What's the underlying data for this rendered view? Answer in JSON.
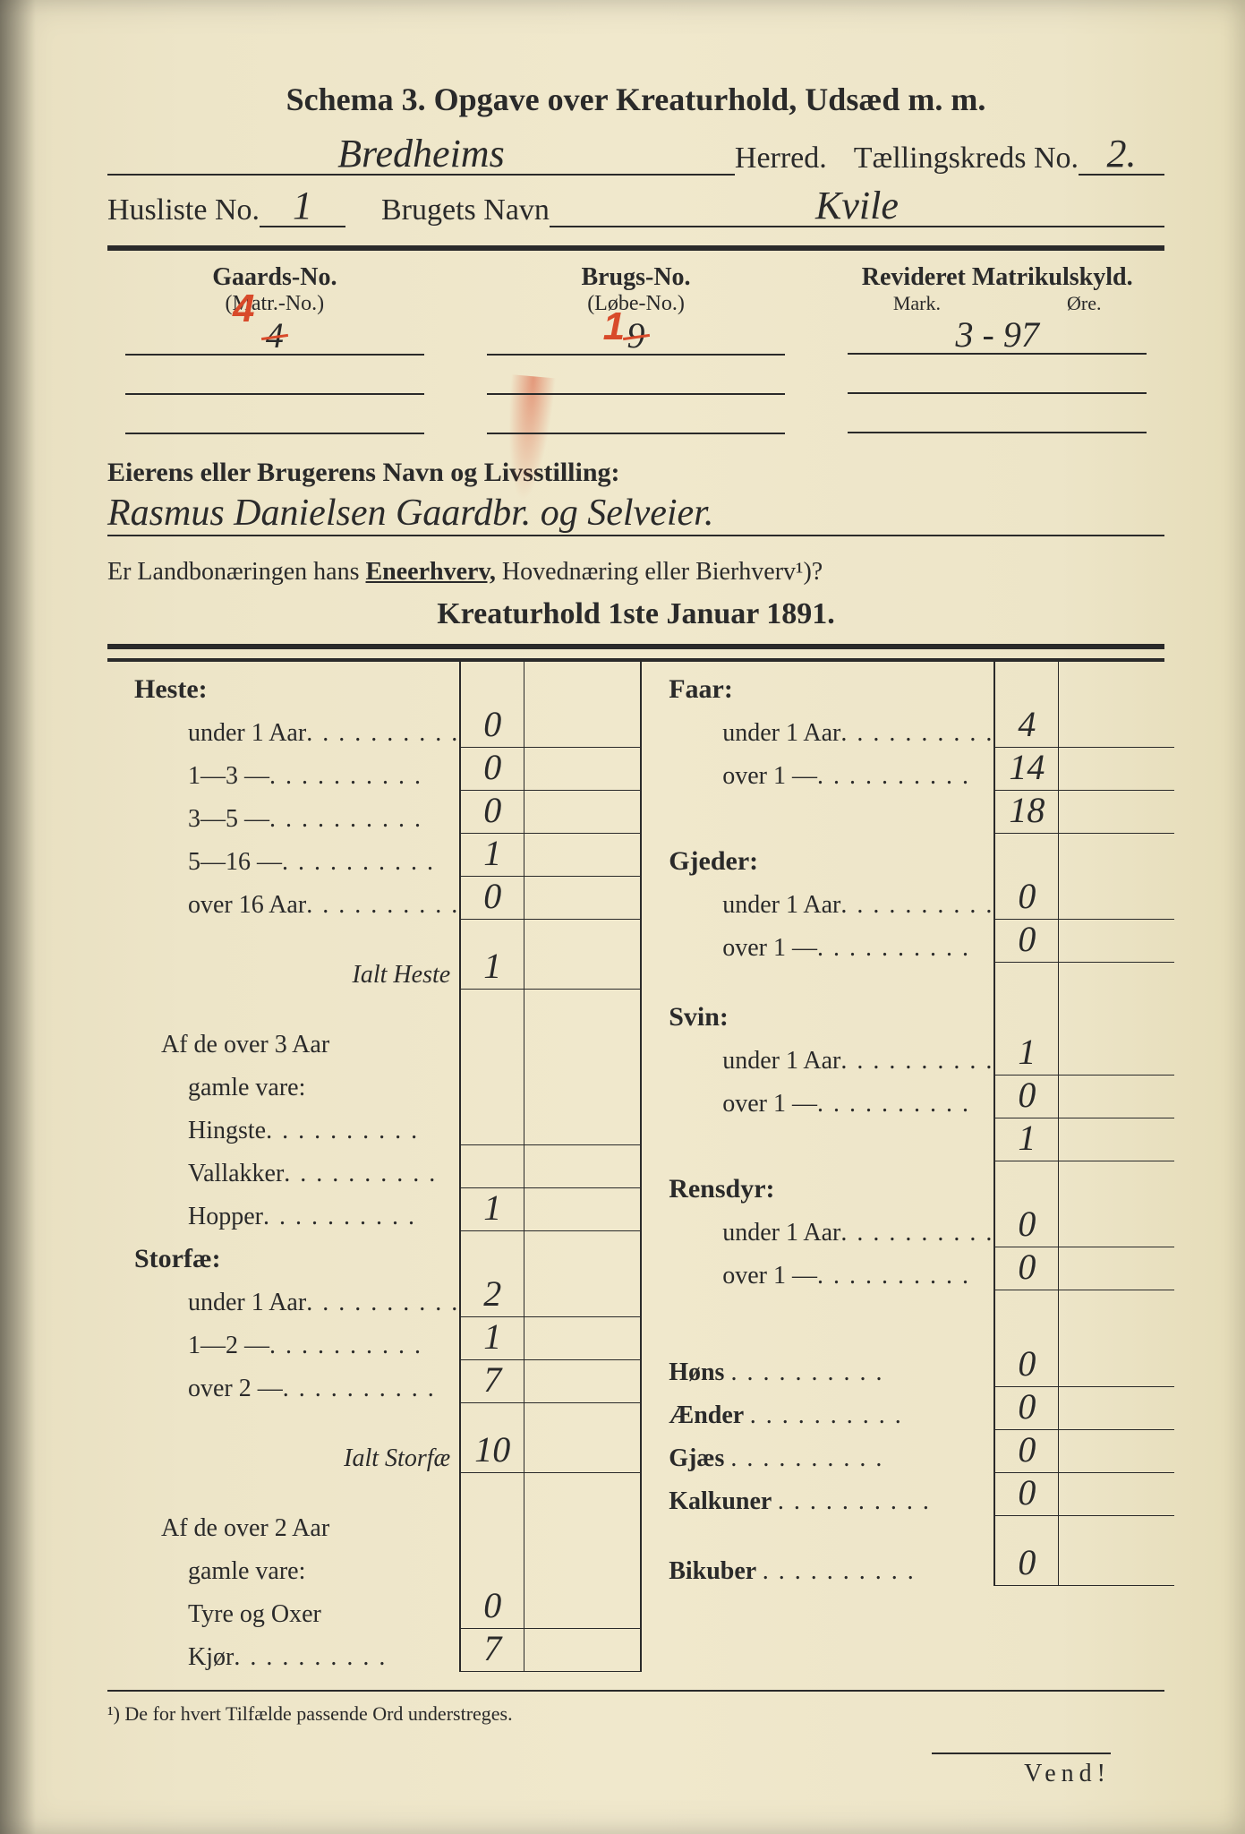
{
  "title": "Schema 3.   Opgave over Kreaturhold, Udsæd m. m.",
  "herred_fill": "Bredheims",
  "herred_label": "Herred.",
  "taellingskreds_label": "Tællingskreds No.",
  "taellingskreds_no": "2.",
  "husliste_label": "Husliste No.",
  "husliste_no": "1",
  "brugets_label": "Brugets Navn",
  "brugets_navn": "Kvile",
  "cols": {
    "gaards": {
      "hdr": "Gaards-No.",
      "sub": "(Matr.-No.)",
      "val_orig": "4",
      "val_red": "4"
    },
    "brugs": {
      "hdr": "Brugs-No.",
      "sub": "(Løbe-No.)",
      "val_orig": "9",
      "val_red": "1"
    },
    "revid": {
      "hdr": "Revideret Matrikulskyld.",
      "mark": "Mark.",
      "ore": "Øre.",
      "val": "3 - 97"
    }
  },
  "owner_label": "Eierens eller Brugerens Navn og Livsstilling:",
  "owner_fill": "Rasmus Danielsen Gaardbr. og Selveier.",
  "question_text_a": "Er Landbonæringen hans ",
  "question_under": "Eneerhverv,",
  "question_text_b": " Hovednæring eller Bierhverv¹)?",
  "kreatur_title": "Kreaturhold 1ste Januar 1891.",
  "left_rows": [
    {
      "type": "cat",
      "label": "Heste:"
    },
    {
      "type": "val",
      "label": "under 1 Aar",
      "dots": true,
      "v": "0"
    },
    {
      "type": "val",
      "label": "1—3    —",
      "dots": true,
      "v": "0"
    },
    {
      "type": "val",
      "label": "3—5    —",
      "dots": true,
      "v": "0"
    },
    {
      "type": "val",
      "label": "5—16  —",
      "dots": true,
      "v": "1"
    },
    {
      "type": "val",
      "label": "over 16 Aar",
      "dots": true,
      "v": "0"
    },
    {
      "type": "spacer"
    },
    {
      "type": "ital",
      "label": "Ialt Heste",
      "v": "1"
    },
    {
      "type": "spacer"
    },
    {
      "type": "sub",
      "label": "Af de over 3 Aar"
    },
    {
      "type": "sub2",
      "label": "gamle vare:"
    },
    {
      "type": "val",
      "label": "Hingste",
      "dots": true,
      "v": ""
    },
    {
      "type": "val",
      "label": "Vallakker",
      "dots": true,
      "v": ""
    },
    {
      "type": "val",
      "label": "Hopper",
      "dots": true,
      "v": "1"
    },
    {
      "type": "cat",
      "label": "Storfæ:"
    },
    {
      "type": "val",
      "label": "under 1 Aar",
      "dots": true,
      "v": "2"
    },
    {
      "type": "val",
      "label": "1—2    —",
      "dots": true,
      "v": "1"
    },
    {
      "type": "val",
      "label": "over 2  —",
      "dots": true,
      "v": "7"
    },
    {
      "type": "spacer"
    },
    {
      "type": "ital",
      "label": "Ialt Storfæ",
      "v": "10"
    },
    {
      "type": "spacer"
    },
    {
      "type": "sub",
      "label": "Af de over 2 Aar"
    },
    {
      "type": "sub2",
      "label": "gamle vare:"
    },
    {
      "type": "val",
      "label": "Tyre og Oxer",
      "v": "0"
    },
    {
      "type": "val",
      "label": "Kjør",
      "dots": true,
      "v": "7"
    }
  ],
  "right_rows": [
    {
      "type": "cat",
      "label": "Faar:"
    },
    {
      "type": "val",
      "label": "under 1 Aar",
      "dots": true,
      "v": "4"
    },
    {
      "type": "val",
      "label": "over 1    —",
      "dots": true,
      "v": "14"
    },
    {
      "type": "ital",
      "label": "",
      "v": "18"
    },
    {
      "type": "cat",
      "label": "Gjeder:"
    },
    {
      "type": "val",
      "label": "under 1 Aar",
      "dots": true,
      "v": "0"
    },
    {
      "type": "val",
      "label": "over 1    —",
      "dots": true,
      "v": "0"
    },
    {
      "type": "spacer"
    },
    {
      "type": "cat",
      "label": "Svin:"
    },
    {
      "type": "val",
      "label": "under 1 Aar",
      "dots": true,
      "v": "1"
    },
    {
      "type": "val",
      "label": "over 1    —",
      "dots": true,
      "v": "0"
    },
    {
      "type": "ital",
      "label": "",
      "v": "1"
    },
    {
      "type": "cat",
      "label": "Rensdyr:"
    },
    {
      "type": "val",
      "label": "under 1 Aar",
      "dots": true,
      "v": "0"
    },
    {
      "type": "val",
      "label": "over 1    —",
      "dots": true,
      "v": "0"
    },
    {
      "type": "spacer"
    },
    {
      "type": "spacer"
    },
    {
      "type": "valp",
      "label": "Høns",
      "dots": true,
      "v": "0"
    },
    {
      "type": "valp",
      "label": "Ænder",
      "dots": true,
      "v": "0"
    },
    {
      "type": "valp",
      "label": "Gjæs",
      "dots": true,
      "v": "0"
    },
    {
      "type": "valp",
      "label": "Kalkuner",
      "dots": true,
      "v": "0"
    },
    {
      "type": "spacer"
    },
    {
      "type": "valp",
      "label": "Bikuber",
      "dots": true,
      "v": "0"
    }
  ],
  "footnote": "¹) De for hvert Tilfælde passende Ord understreges.",
  "vend": "Vend!",
  "colors": {
    "paper": "#ede5c8",
    "ink": "#2a2a2a",
    "red": "#d84a2a"
  }
}
